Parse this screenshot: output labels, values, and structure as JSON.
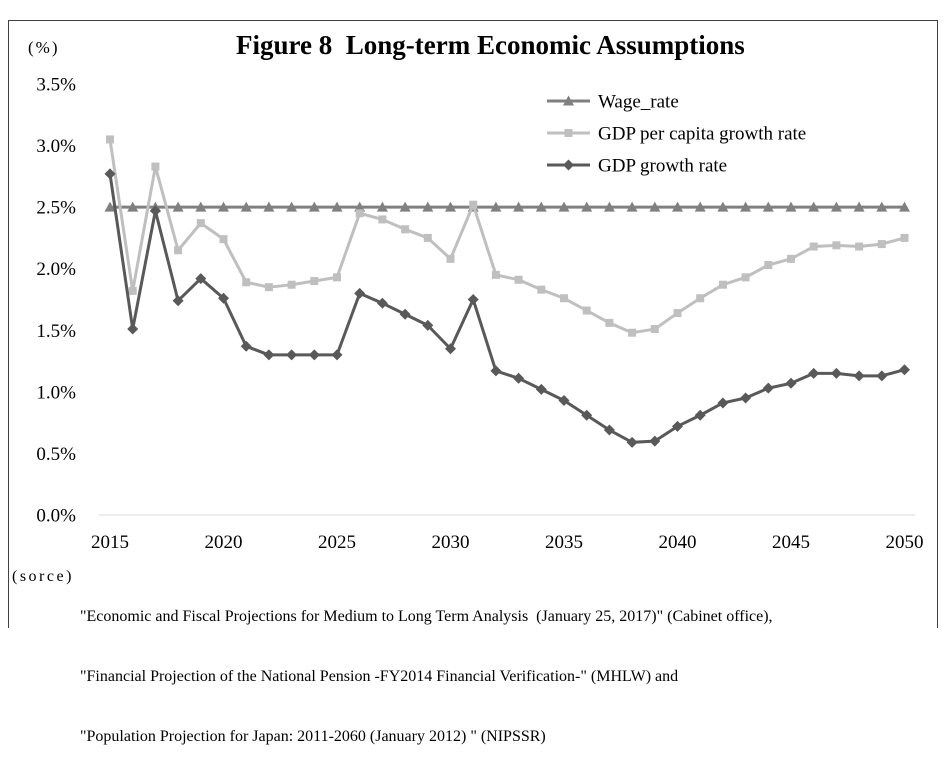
{
  "chart_data": {
    "type": "line",
    "title": "Figure 8  Long-term Economic Assumptions",
    "ylabel": "(%)",
    "x": [
      2015,
      2016,
      2017,
      2018,
      2019,
      2020,
      2021,
      2022,
      2023,
      2024,
      2025,
      2026,
      2027,
      2028,
      2029,
      2030,
      2031,
      2032,
      2033,
      2034,
      2035,
      2036,
      2037,
      2038,
      2039,
      2040,
      2041,
      2042,
      2043,
      2044,
      2045,
      2046,
      2047,
      2048,
      2049,
      2050
    ],
    "xtick_labels": [
      "2015",
      "2020",
      "2025",
      "2030",
      "2035",
      "2040",
      "2045",
      "2050"
    ],
    "ytick_labels": [
      "0.0%",
      "0.5%",
      "1.0%",
      "1.5%",
      "2.0%",
      "2.5%",
      "3.0%",
      "3.5%"
    ],
    "ylim": [
      0,
      3.5
    ],
    "grid": false,
    "legend": "top-right",
    "series": [
      {
        "name": "Wage_rate",
        "color": "#808080",
        "marker": "triangle",
        "values": [
          2.5,
          2.5,
          2.5,
          2.5,
          2.5,
          2.5,
          2.5,
          2.5,
          2.5,
          2.5,
          2.5,
          2.5,
          2.5,
          2.5,
          2.5,
          2.5,
          2.5,
          2.5,
          2.5,
          2.5,
          2.5,
          2.5,
          2.5,
          2.5,
          2.5,
          2.5,
          2.5,
          2.5,
          2.5,
          2.5,
          2.5,
          2.5,
          2.5,
          2.5,
          2.5,
          2.5
        ]
      },
      {
        "name": "GDP per capita growth rate",
        "color": "#bfbfbf",
        "marker": "square",
        "values": [
          3.05,
          1.82,
          2.83,
          2.15,
          2.37,
          2.24,
          1.89,
          1.85,
          1.87,
          1.9,
          1.93,
          2.45,
          2.4,
          2.32,
          2.25,
          2.08,
          2.52,
          1.95,
          1.91,
          1.83,
          1.76,
          1.66,
          1.56,
          1.48,
          1.51,
          1.64,
          1.76,
          1.87,
          1.93,
          2.03,
          2.08,
          2.18,
          2.19,
          2.18,
          2.2,
          2.25
        ]
      },
      {
        "name": "GDP growth rate",
        "color": "#595959",
        "marker": "diamond",
        "values": [
          2.77,
          1.51,
          2.47,
          1.74,
          1.92,
          1.76,
          1.37,
          1.3,
          1.3,
          1.3,
          1.3,
          1.8,
          1.72,
          1.63,
          1.54,
          1.35,
          1.75,
          1.17,
          1.11,
          1.02,
          0.93,
          0.81,
          0.69,
          0.59,
          0.6,
          0.72,
          0.81,
          0.91,
          0.95,
          1.03,
          1.07,
          1.15,
          1.15,
          1.13,
          1.13,
          1.18
        ]
      }
    ]
  },
  "source": {
    "label": "(sorce)",
    "lines": [
      "\"Economic and Fiscal Projections for Medium to Long Term Analysis  (January 25, 2017)\" (Cabinet office),",
      "\"Financial Projection of the National Pension -FY2014 Financial Verification-\" (MHLW) and",
      "\"Population Projection for Japan: 2011-2060 (January 2012) \" (NIPSSR)"
    ]
  }
}
